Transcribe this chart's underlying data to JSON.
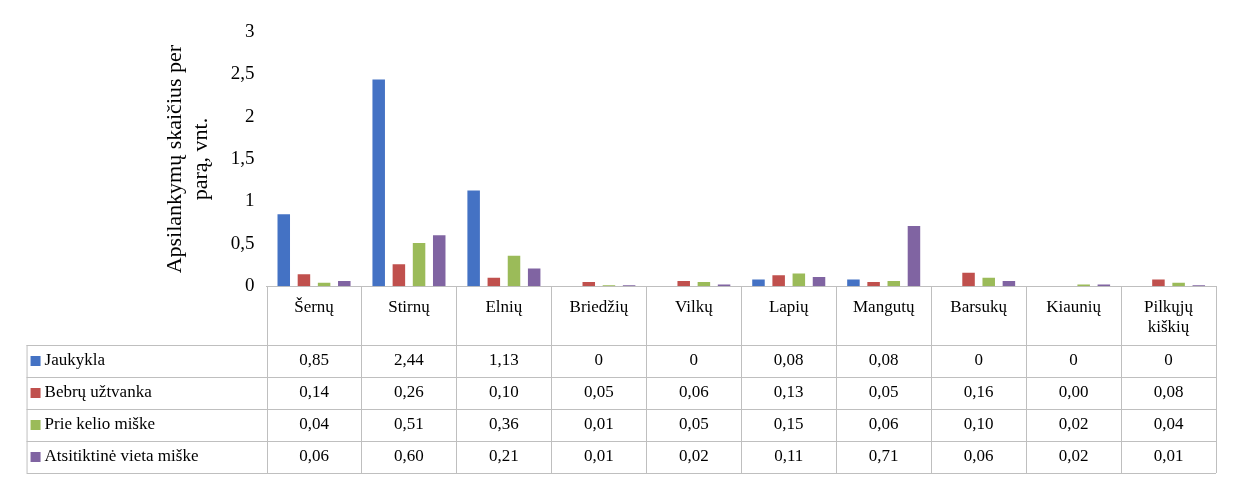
{
  "chart_data": {
    "type": "bar",
    "ylabel": "Apsilankymų skaičius per parą, vnt.",
    "categories": [
      "Šernų",
      "Stirnų",
      "Elnių",
      "Briedžių",
      "Vilkų",
      "Lapių",
      "Mangutų",
      "Barsukų",
      "Kiaunių",
      "Pilkųjų kiškių"
    ],
    "series": [
      {
        "name": "Jaukykla",
        "color": "#4472c4",
        "values": [
          0.85,
          2.44,
          1.13,
          0,
          0,
          0.08,
          0.08,
          0,
          0,
          0
        ],
        "value_labels": [
          "0,85",
          "2,44",
          "1,13",
          "0",
          "0",
          "0,08",
          "0,08",
          "0",
          "0",
          "0"
        ]
      },
      {
        "name": "Bebrų užtvanka",
        "color": "#c0504d",
        "values": [
          0.14,
          0.26,
          0.1,
          0.05,
          0.06,
          0.13,
          0.05,
          0.16,
          0.0,
          0.08
        ],
        "value_labels": [
          "0,14",
          "0,26",
          "0,10",
          "0,05",
          "0,06",
          "0,13",
          "0,05",
          "0,16",
          "0,00",
          "0,08"
        ]
      },
      {
        "name": "Prie kelio miške",
        "color": "#9bbb59",
        "values": [
          0.04,
          0.51,
          0.36,
          0.01,
          0.05,
          0.15,
          0.06,
          0.1,
          0.02,
          0.04
        ],
        "value_labels": [
          "0,04",
          "0,51",
          "0,36",
          "0,01",
          "0,05",
          "0,15",
          "0,06",
          "0,10",
          "0,02",
          "0,04"
        ]
      },
      {
        "name": "Atsitiktinė vieta miške",
        "color": "#8064a2",
        "values": [
          0.06,
          0.6,
          0.21,
          0.01,
          0.02,
          0.11,
          0.71,
          0.06,
          0.02,
          0.01
        ],
        "value_labels": [
          "0,06",
          "0,60",
          "0,21",
          "0,01",
          "0,02",
          "0,11",
          "0,71",
          "0,06",
          "0,02",
          "0,01"
        ]
      }
    ],
    "ylim": [
      0,
      3
    ],
    "yticks": [
      0,
      {
        "value": 0.5,
        "label": "0,5"
      },
      1,
      {
        "value": 1.5,
        "label": "1,5"
      },
      2,
      {
        "value": 2.5,
        "label": "2,5"
      },
      3
    ],
    "grid": false,
    "legend": "bottom"
  }
}
